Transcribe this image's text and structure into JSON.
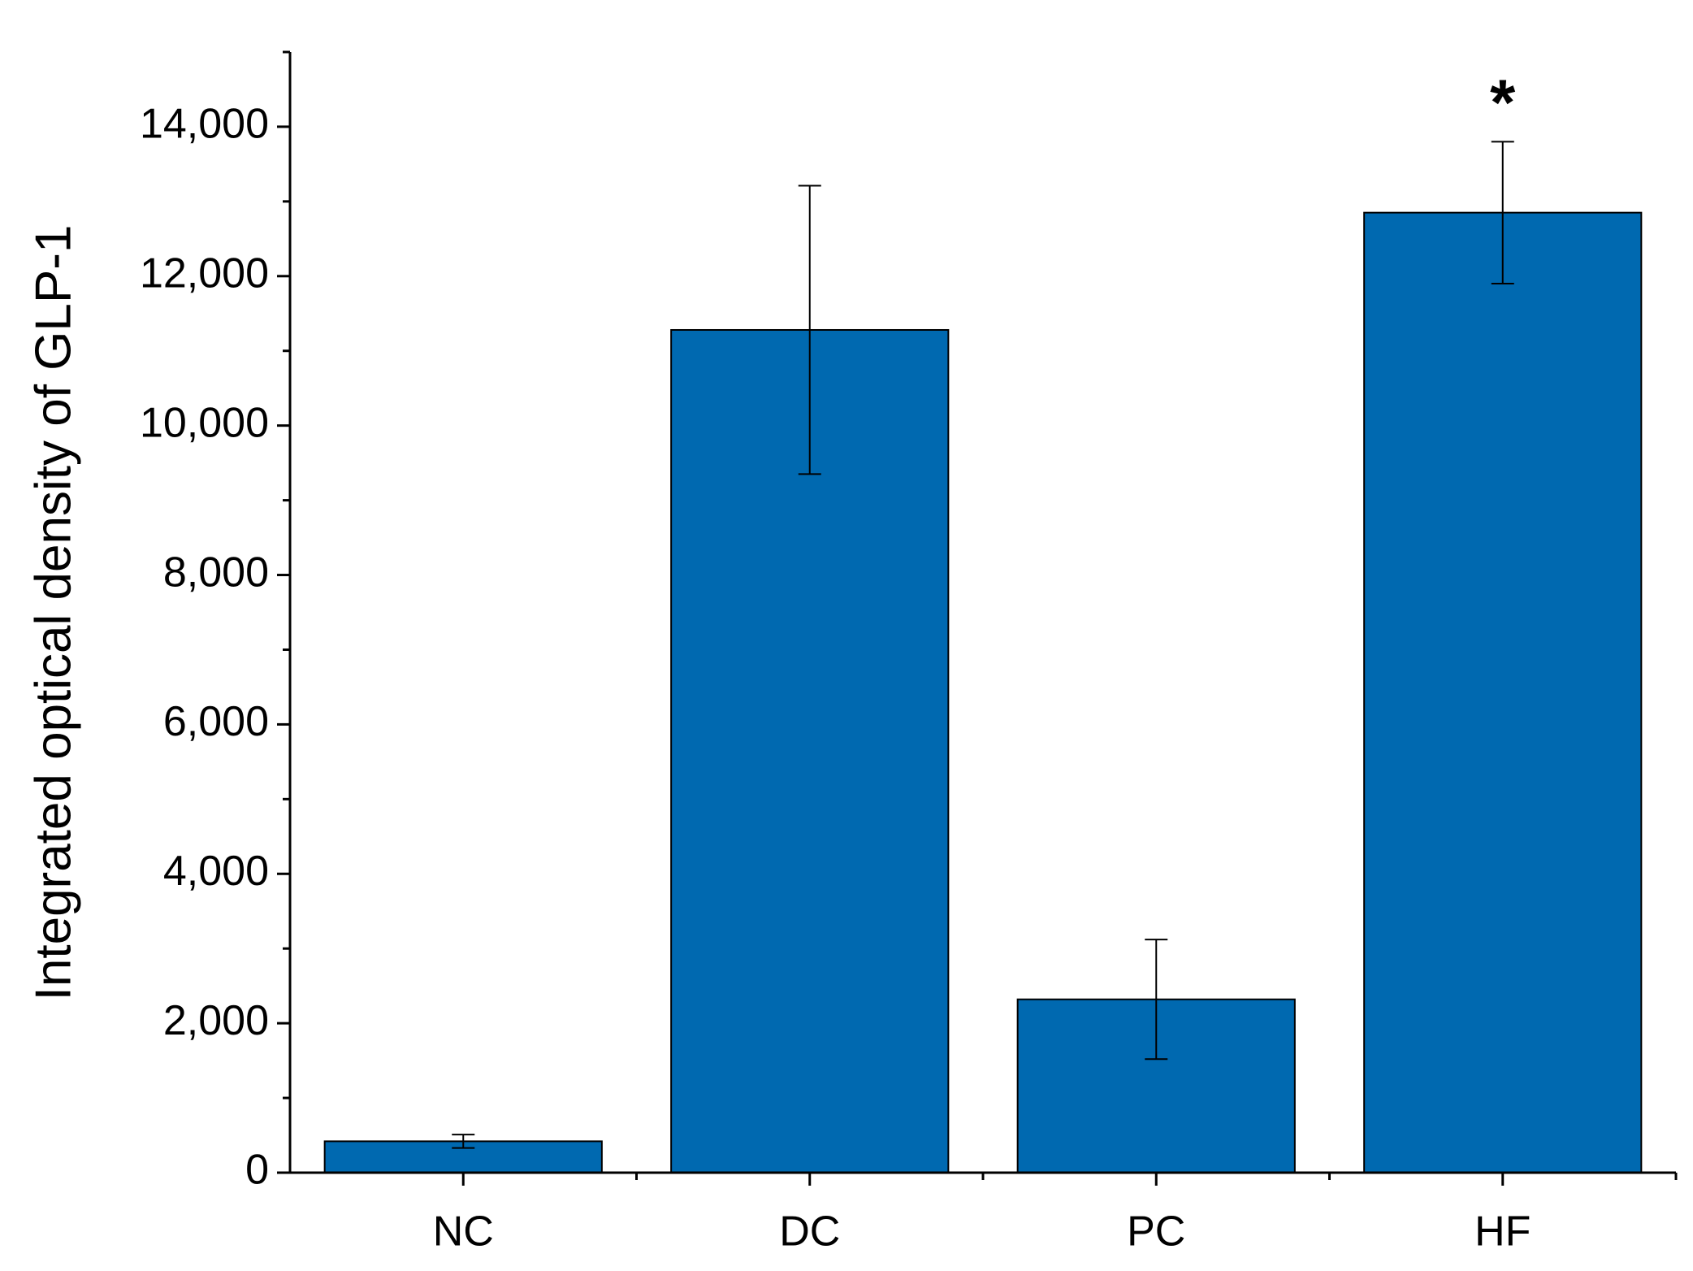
{
  "chart_data": {
    "type": "bar",
    "y_label": "Integrated optical density of GLP-1",
    "categories": [
      "NC",
      "DC",
      "PC",
      "HF"
    ],
    "values": [
      420,
      11280,
      2320,
      12850
    ],
    "errors": [
      90,
      1930,
      800,
      950
    ],
    "color": "#0069b0",
    "annotation": "*",
    "ylim": [
      0,
      15000
    ],
    "yticks": [
      0,
      {
        "value": 2000,
        "label": "2,000"
      },
      {
        "value": 4000,
        "label": "4,000"
      },
      {
        "value": 6000,
        "label": "6,000"
      },
      {
        "value": 8000,
        "label": "8,000"
      },
      {
        "value": 10000,
        "label": "10,000"
      },
      {
        "value": 12000,
        "label": "12,000"
      },
      {
        "value": 14000,
        "label": "14,000"
      }
    ],
    "yminorticks": [
      1000,
      3000,
      5000,
      7000,
      9000,
      11000,
      13000,
      15000
    ],
    "grid": false
  }
}
